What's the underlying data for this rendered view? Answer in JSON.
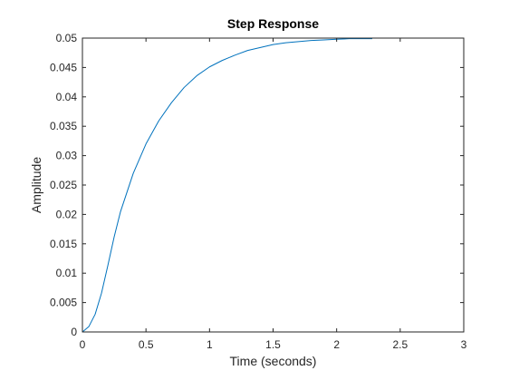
{
  "chart_data": {
    "type": "line",
    "title": "Step Response",
    "xlabel": "Time (seconds)",
    "ylabel": "Amplitude",
    "xlim": [
      0,
      3
    ],
    "ylim": [
      0,
      0.05
    ],
    "xticks": [
      0,
      0.5,
      1,
      1.5,
      2,
      2.5,
      3
    ],
    "xtick_labels": [
      "0",
      "0.5",
      "1",
      "1.5",
      "2",
      "2.5",
      "3"
    ],
    "yticks": [
      0,
      0.005,
      0.01,
      0.015,
      0.02,
      0.025,
      0.03,
      0.035,
      0.04,
      0.045,
      0.05
    ],
    "ytick_labels": [
      "0",
      "0.005",
      "0.01",
      "0.015",
      "0.02",
      "0.025",
      "0.03",
      "0.035",
      "0.04",
      "0.045",
      "0.05"
    ],
    "grid": false,
    "series": [
      {
        "color": "#0072BD",
        "x": [
          0,
          0.05,
          0.1,
          0.15,
          0.2,
          0.25,
          0.3,
          0.4,
          0.5,
          0.6,
          0.7,
          0.8,
          0.9,
          1.0,
          1.1,
          1.2,
          1.3,
          1.4,
          1.5,
          1.6,
          1.7,
          1.8,
          1.9,
          2.0,
          2.1,
          2.2,
          2.28
        ],
        "y": [
          0,
          0.0009,
          0.003,
          0.0066,
          0.0113,
          0.0162,
          0.0205,
          0.027,
          0.032,
          0.0359,
          0.039,
          0.0416,
          0.0436,
          0.0451,
          0.0462,
          0.0471,
          0.0479,
          0.0484,
          0.0489,
          0.0492,
          0.0494,
          0.0496,
          0.0497,
          0.0498,
          0.0499,
          0.0499,
          0.0499
        ]
      }
    ],
    "reference_line": {
      "y": 0.05,
      "color": "#000000",
      "style": "dotted"
    }
  }
}
